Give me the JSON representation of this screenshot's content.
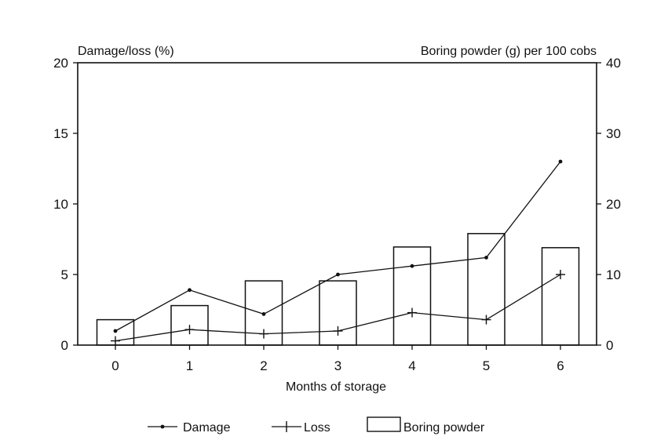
{
  "chart_data": {
    "type": "bar+line",
    "title": "",
    "xlabel": "Months of storage",
    "ylabel_left": "Damage/loss (%)",
    "ylabel_right": "Boring powder (g) per 100 cobs",
    "categories": [
      "0",
      "1",
      "2",
      "3",
      "4",
      "5",
      "6"
    ],
    "y_left_lim": [
      0,
      20
    ],
    "y_left_ticks": [
      "0",
      "5",
      "10",
      "15",
      "20"
    ],
    "y_right_lim": [
      0,
      40
    ],
    "y_right_ticks": [
      "0",
      "10",
      "20",
      "30",
      "40"
    ],
    "grid": false,
    "legend_position": "bottom",
    "series": [
      {
        "name": "Damage",
        "type": "line",
        "axis": "left",
        "marker": "dot",
        "values": [
          1.0,
          3.9,
          2.2,
          5.0,
          5.6,
          6.2,
          13.0
        ]
      },
      {
        "name": "Loss",
        "type": "line",
        "axis": "left",
        "marker": "cross",
        "values": [
          0.3,
          1.1,
          0.8,
          1.0,
          2.3,
          1.8,
          5.0
        ]
      },
      {
        "name": "Boring powder",
        "type": "bar",
        "axis": "right",
        "values": [
          3.6,
          5.6,
          9.1,
          9.1,
          13.9,
          15.8,
          13.8
        ]
      }
    ]
  }
}
